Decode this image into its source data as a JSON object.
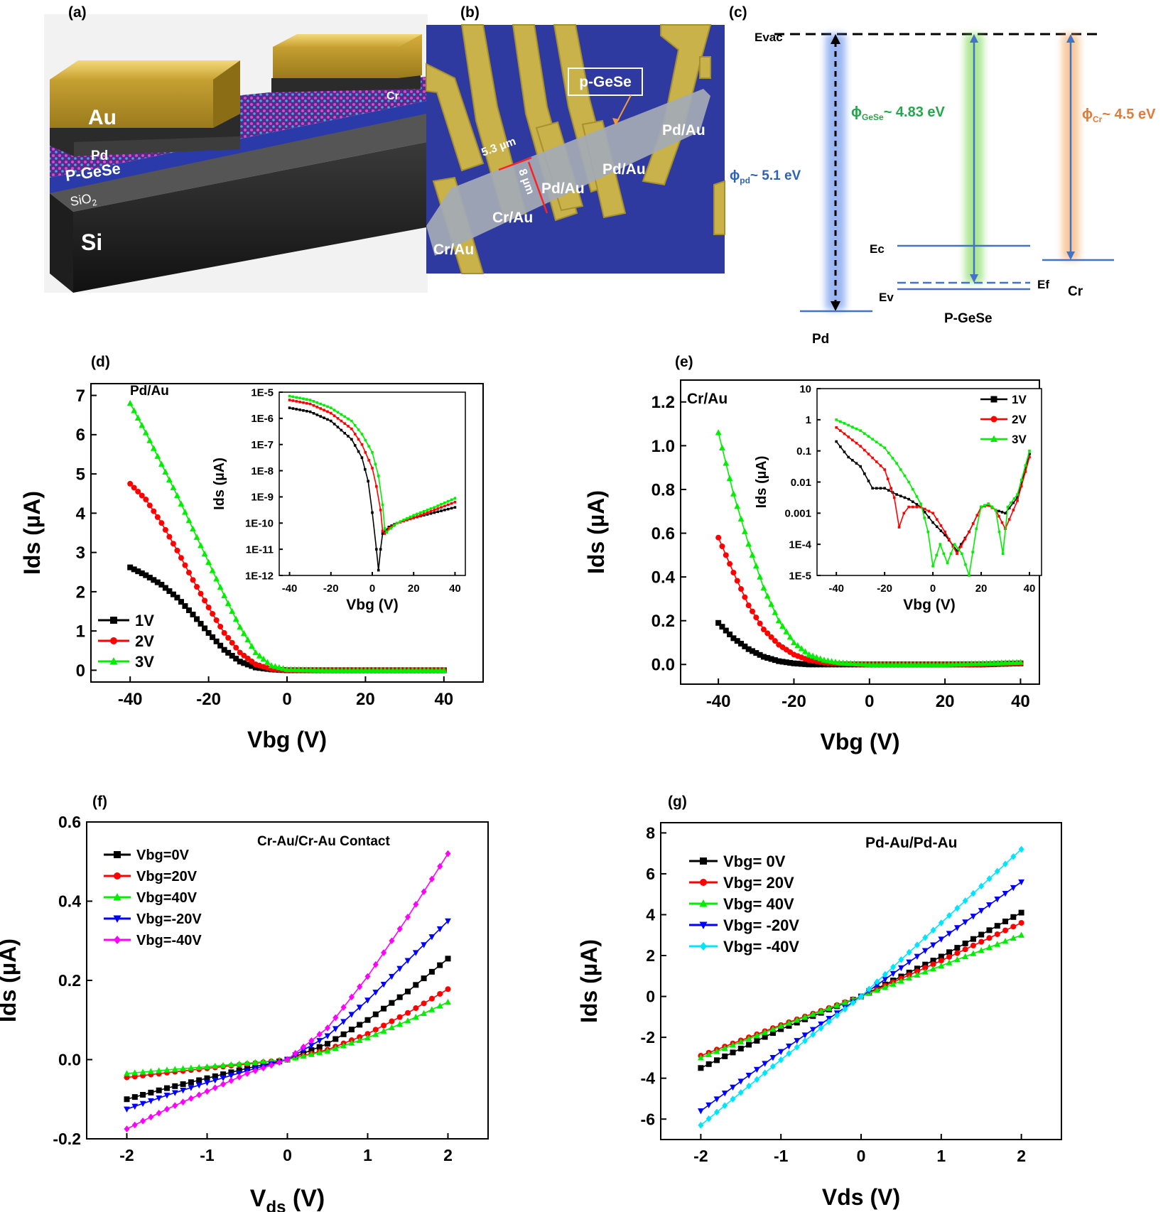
{
  "panels": {
    "a": {
      "label": "(a)",
      "layers": [
        "Au",
        "Pd",
        "P-GeSe",
        "SiO",
        "2",
        "Si",
        "Cr"
      ]
    },
    "b": {
      "label": "(b)",
      "material_label": "p-GeSe",
      "dim_width": "5.3 µm",
      "dim_length": "8 µm",
      "contacts": [
        "Pd/Au",
        "Pd/Au",
        "Pd/Au",
        "Cr/Au",
        "Cr/Au"
      ]
    },
    "c": {
      "label": "(c)",
      "evac": "Evac",
      "phi_pd_sym": "ϕ",
      "phi_pd_sub": "pd",
      "phi_pd_val": "~ 5.1 eV",
      "phi_gese_sym": "ϕ",
      "phi_gese_sub": "GeSe",
      "phi_gese_val": "~ 4.83 eV",
      "phi_cr_sym": "ϕ",
      "phi_cr_sub": "Cr",
      "phi_cr_val": "~ 4.5 eV",
      "ec": "Ec",
      "ev": "Ev",
      "ef": "Ef",
      "pd": "Pd",
      "pgese": "P-GeSe",
      "cr": "Cr",
      "colors": {
        "pd": "#4472c4",
        "gese": "#22a84a",
        "cr": "#e07b39"
      }
    }
  },
  "chart_data": [
    {
      "id": "d",
      "type": "line",
      "label": "(d)",
      "title": "Pd/Au",
      "xlabel": "Vbg (V)",
      "ylabel": "Ids (µA)",
      "xlim": [
        -50,
        50
      ],
      "ylim": [
        -0.3,
        7.3
      ],
      "xticks": [
        -40,
        -20,
        0,
        20,
        40
      ],
      "yticks": [
        0,
        1,
        2,
        3,
        4,
        5,
        6,
        7
      ],
      "legend_position": "bottom-left",
      "series": [
        {
          "name": "1V",
          "color": "#000000",
          "marker": "square",
          "x": [
            -40,
            -36,
            -32,
            -28,
            -24,
            -20,
            -16,
            -12,
            -8,
            -4,
            0,
            10,
            20,
            30,
            40
          ],
          "y": [
            2.62,
            2.42,
            2.18,
            1.85,
            1.42,
            0.95,
            0.52,
            0.22,
            0.07,
            0.02,
            0.0,
            0.0,
            0.0,
            0.0,
            0.0
          ]
        },
        {
          "name": "2V",
          "color": "#ff0000",
          "marker": "circle",
          "x": [
            -40,
            -36,
            -32,
            -28,
            -24,
            -20,
            -16,
            -12,
            -8,
            -4,
            0,
            10,
            20,
            30,
            40
          ],
          "y": [
            4.75,
            4.35,
            3.75,
            3.05,
            2.3,
            1.6,
            0.95,
            0.45,
            0.15,
            0.03,
            0.0,
            0.0,
            0.0,
            0.0,
            0.0
          ]
        },
        {
          "name": "3V",
          "color": "#00ee00",
          "marker": "triangle",
          "x": [
            -40,
            -36,
            -32,
            -28,
            -24,
            -20,
            -16,
            -12,
            -8,
            -4,
            0,
            10,
            20,
            30,
            40
          ],
          "y": [
            6.8,
            6.05,
            5.25,
            4.45,
            3.6,
            2.75,
            1.9,
            1.1,
            0.45,
            0.12,
            0.02,
            0.0,
            0.0,
            0.0,
            0.0
          ]
        }
      ],
      "inset": {
        "type": "line",
        "scale": "log",
        "xlabel": "Vbg (V)",
        "ylabel": "Ids (µA)",
        "xlim": [
          -45,
          45
        ],
        "ylim_exp": [
          -12,
          -5
        ],
        "xticks": [
          -40,
          -20,
          0,
          20,
          40
        ],
        "ytick_labels": [
          "1E-12",
          "1E-11",
          "1E-10",
          "1E-9",
          "1E-8",
          "1E-7",
          "1E-6",
          "1E-5"
        ],
        "series": [
          {
            "name": "1V",
            "color": "#000000",
            "x": [
              -40,
              -30,
              -20,
              -10,
              -5,
              -2,
              0,
              2,
              3,
              4,
              5,
              8,
              12,
              20,
              30,
              40
            ],
            "y_exp": [
              -5.6,
              -5.75,
              -6.1,
              -6.8,
              -7.5,
              -8.4,
              -9.6,
              -11.0,
              -11.8,
              -11.0,
              -10.4,
              -10.15,
              -10.0,
              -9.8,
              -9.6,
              -9.4
            ]
          },
          {
            "name": "2V",
            "color": "#ff0000",
            "x": [
              -40,
              -30,
              -20,
              -10,
              -5,
              0,
              2,
              4,
              5,
              6,
              8,
              12,
              20,
              30,
              40
            ],
            "y_exp": [
              -5.3,
              -5.45,
              -5.8,
              -6.4,
              -7.0,
              -7.9,
              -8.6,
              -9.5,
              -10.3,
              -10.4,
              -10.2,
              -10.0,
              -9.8,
              -9.5,
              -9.2
            ]
          },
          {
            "name": "3V",
            "color": "#00ee00",
            "x": [
              -40,
              -30,
              -20,
              -10,
              -5,
              0,
              3,
              5,
              6,
              7,
              9,
              12,
              20,
              30,
              40
            ],
            "y_exp": [
              -5.15,
              -5.3,
              -5.6,
              -6.1,
              -6.6,
              -7.3,
              -8.2,
              -9.3,
              -10.2,
              -10.35,
              -10.2,
              -10.0,
              -9.7,
              -9.4,
              -9.05
            ]
          }
        ]
      }
    },
    {
      "id": "e",
      "type": "line",
      "label": "(e)",
      "title": "Cr/Au",
      "xlabel": "Vbg (V)",
      "ylabel": "Ids (µA)",
      "xlim": [
        -50,
        45
      ],
      "ylim": [
        -0.09,
        1.3
      ],
      "xticks": [
        -40,
        -20,
        0,
        20,
        40
      ],
      "ytick_labels": [
        "0.0",
        "0.2",
        "0.4",
        "0.6",
        "0.8",
        "1.0",
        "1.2"
      ],
      "yticks": [
        0,
        0.2,
        0.4,
        0.6,
        0.8,
        1.0,
        1.2
      ],
      "series": [
        {
          "name": "1V",
          "color": "#000000",
          "marker": "square",
          "x": [
            -40,
            -36,
            -32,
            -28,
            -24,
            -20,
            -16,
            -10,
            0,
            10,
            20,
            30,
            40
          ],
          "y": [
            0.19,
            0.12,
            0.07,
            0.035,
            0.015,
            0.005,
            0.0,
            0.0,
            0.0,
            0.0,
            0.0,
            0.0,
            0.005
          ]
        },
        {
          "name": "2V",
          "color": "#ff0000",
          "marker": "circle",
          "x": [
            -40,
            -36,
            -32,
            -28,
            -24,
            -20,
            -16,
            -12,
            -8,
            0,
            10,
            20,
            30,
            40
          ],
          "y": [
            0.58,
            0.42,
            0.27,
            0.16,
            0.09,
            0.045,
            0.02,
            0.008,
            0.003,
            0.0,
            0.0,
            0.0,
            0.0,
            0.005
          ]
        },
        {
          "name": "3V",
          "color": "#00ee00",
          "marker": "triangle",
          "x": [
            -40,
            -38,
            -36,
            -32,
            -28,
            -24,
            -20,
            -16,
            -12,
            -8,
            0,
            10,
            20,
            30,
            40
          ],
          "y": [
            1.06,
            0.92,
            0.78,
            0.55,
            0.35,
            0.2,
            0.1,
            0.045,
            0.02,
            0.008,
            0.0,
            0.0,
            0.0,
            0.005,
            0.01
          ]
        }
      ],
      "inset": {
        "type": "line",
        "scale": "log",
        "xlabel": "Vbg (V)",
        "ylabel": "Ids (µA)",
        "xlim": [
          -48,
          45
        ],
        "ylim_exp": [
          -5,
          1
        ],
        "xticks": [
          -40,
          -20,
          0,
          20,
          40
        ],
        "ytick_labels": [
          "1E-5",
          "1E-4",
          "0.001",
          "0.01",
          "0.1",
          "1",
          "10"
        ],
        "legend_position": "top-right",
        "series": [
          {
            "name": "1V",
            "color": "#000000",
            "x": [
              -40,
              -35,
              -30,
              -25,
              -20,
              -15,
              -10,
              -5,
              0,
              5,
              10,
              15,
              20,
              23,
              26,
              30,
              35,
              40
            ],
            "y_exp": [
              -0.7,
              -1.2,
              -1.5,
              -2.2,
              -2.2,
              -2.4,
              -2.55,
              -2.8,
              -3.3,
              -3.7,
              -4.2,
              -3.6,
              -2.8,
              -2.7,
              -2.9,
              -3.0,
              -2.5,
              -1.1
            ]
          },
          {
            "name": "2V",
            "color": "#ff0000",
            "x": [
              -40,
              -30,
              -20,
              -16,
              -14,
              -12,
              -10,
              -5,
              0,
              5,
              10,
              15,
              20,
              23,
              26,
              30,
              35,
              40
            ],
            "y_exp": [
              -0.25,
              -0.85,
              -1.6,
              -2.5,
              -3.45,
              -3.0,
              -2.8,
              -2.8,
              -3.0,
              -3.6,
              -4.3,
              -3.6,
              -2.8,
              -2.75,
              -2.9,
              -3.5,
              -2.6,
              -1.2
            ]
          },
          {
            "name": "3V",
            "color": "#00ee00",
            "x": [
              -40,
              -30,
              -20,
              -15,
              -10,
              -5,
              -2,
              0,
              3,
              6,
              9,
              12,
              15,
              18,
              20,
              23,
              26,
              29,
              31,
              35,
              40
            ],
            "y_exp": [
              0.0,
              -0.35,
              -0.9,
              -1.4,
              -2.0,
              -2.7,
              -3.6,
              -4.7,
              -4.0,
              -4.6,
              -4.0,
              -4.3,
              -5.0,
              -3.5,
              -2.8,
              -2.7,
              -2.9,
              -4.3,
              -2.8,
              -2.4,
              -1.0
            ]
          }
        ]
      }
    },
    {
      "id": "f",
      "type": "line",
      "label": "(f)",
      "title": "Cr-Au/Cr-Au Contact",
      "xlabel_main": "V",
      "xlabel_sub": "ds",
      "xlabel_unit": " (V)",
      "ylabel": "Ids (µA)",
      "xlim": [
        -2.5,
        2.5
      ],
      "ylim": [
        -0.2,
        0.6
      ],
      "xticks": [
        -2,
        -1,
        0,
        1,
        2
      ],
      "yticks": [
        -0.2,
        0.0,
        0.2,
        0.4,
        0.6
      ],
      "ytick_labels": [
        "-0.2",
        "0.0",
        "0.2",
        "0.4",
        "0.6"
      ],
      "legend_position": "top-left",
      "series": [
        {
          "name": "Vbg=0V",
          "color": "#000000",
          "marker": "square",
          "x": [
            -2,
            -1.5,
            -1,
            -0.5,
            0,
            0.5,
            1,
            1.5,
            2
          ],
          "y": [
            -0.1,
            -0.072,
            -0.047,
            -0.022,
            0.0,
            0.04,
            0.1,
            0.172,
            0.255
          ]
        },
        {
          "name": "Vbg=20V",
          "color": "#ff0000",
          "marker": "circle",
          "x": [
            -2,
            -1.5,
            -1,
            -0.5,
            0,
            0.5,
            1,
            1.5,
            2
          ],
          "y": [
            -0.045,
            -0.033,
            -0.022,
            -0.011,
            0.0,
            0.025,
            0.065,
            0.118,
            0.178
          ]
        },
        {
          "name": "Vbg=40V",
          "color": "#00ee00",
          "marker": "triangle",
          "x": [
            -2,
            -1.5,
            -1,
            -0.5,
            0,
            0.5,
            1,
            1.5,
            2
          ],
          "y": [
            -0.035,
            -0.026,
            -0.018,
            -0.009,
            0.0,
            0.022,
            0.055,
            0.098,
            0.145
          ]
        },
        {
          "name": "Vbg=-20V",
          "color": "#0000ff",
          "marker": "triangle-down",
          "x": [
            -2,
            -1.5,
            -1,
            -0.5,
            0,
            0.5,
            1,
            1.5,
            2
          ],
          "y": [
            -0.125,
            -0.09,
            -0.058,
            -0.028,
            0.0,
            0.06,
            0.15,
            0.25,
            0.35
          ]
        },
        {
          "name": "Vbg=-40V",
          "color": "#ff00ff",
          "marker": "diamond",
          "x": [
            -2,
            -1.5,
            -1,
            -0.5,
            0,
            0.5,
            1,
            1.5,
            2
          ],
          "y": [
            -0.175,
            -0.125,
            -0.08,
            -0.035,
            0.0,
            0.08,
            0.21,
            0.36,
            0.52
          ]
        }
      ]
    },
    {
      "id": "g",
      "type": "line",
      "label": "(g)",
      "title": "Pd-Au/Pd-Au",
      "xlabel": "Vds (V)",
      "ylabel": "Ids (µA)",
      "xlim": [
        -2.5,
        2.5
      ],
      "ylim": [
        -7,
        8.5
      ],
      "xticks": [
        -2,
        -1,
        0,
        1,
        2
      ],
      "yticks": [
        -6,
        -4,
        -2,
        0,
        2,
        4,
        6,
        8
      ],
      "legend_position": "top-left",
      "series": [
        {
          "name": "Vbg= 0V",
          "color": "#000000",
          "marker": "square",
          "x": [
            -2,
            -1,
            0,
            1,
            2
          ],
          "y": [
            -3.5,
            -1.6,
            0.0,
            1.95,
            4.1
          ]
        },
        {
          "name": "Vbg= 20V",
          "color": "#ff0000",
          "marker": "circle",
          "x": [
            -2,
            -1,
            0,
            1,
            2
          ],
          "y": [
            -2.9,
            -1.4,
            0.0,
            1.75,
            3.6
          ]
        },
        {
          "name": "Vbg= 40V",
          "color": "#00ee00",
          "marker": "triangle",
          "x": [
            -2,
            -1,
            0,
            1,
            2
          ],
          "y": [
            -3.0,
            -1.45,
            0.0,
            1.5,
            3.0
          ]
        },
        {
          "name": "Vbg= -20V",
          "color": "#0000ff",
          "marker": "triangle-down",
          "x": [
            -2,
            -1,
            0,
            1,
            2
          ],
          "y": [
            -5.6,
            -2.7,
            0.0,
            2.8,
            5.6
          ]
        },
        {
          "name": "Vbg= -40V",
          "color": "#00e5ff",
          "marker": "diamond",
          "x": [
            -2,
            -1,
            0,
            1,
            2
          ],
          "y": [
            -6.3,
            -3.1,
            0.0,
            3.6,
            7.2
          ]
        }
      ]
    }
  ]
}
